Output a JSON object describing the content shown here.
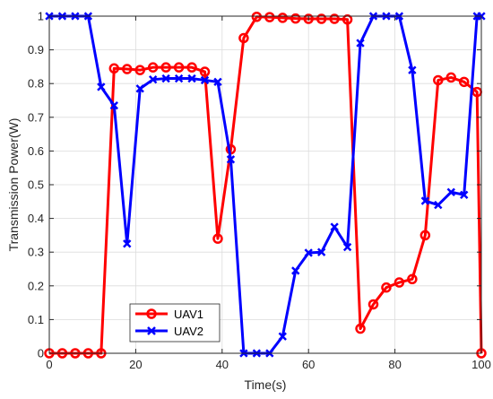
{
  "chart_data": {
    "type": "line",
    "title": "",
    "xlabel": "Time(s)",
    "ylabel": "Transmission Power(W)",
    "xlim": [
      0,
      100
    ],
    "ylim": [
      0,
      1
    ],
    "xticks": [
      0,
      20,
      40,
      60,
      80,
      100
    ],
    "yticks": [
      0,
      0.1,
      0.2,
      0.3,
      0.4,
      0.5,
      0.6,
      0.7,
      0.8,
      0.9,
      1
    ],
    "grid": true,
    "legend_position": "bottom-left",
    "series": [
      {
        "name": "UAV1",
        "color": "#ff0000",
        "marker": "circle",
        "x": [
          0,
          3,
          6,
          9,
          12,
          15,
          18,
          21,
          24,
          27,
          30,
          33,
          36,
          39,
          42,
          45,
          48,
          51,
          54,
          57,
          60,
          63,
          66,
          69,
          72,
          75,
          78,
          81,
          84,
          87,
          90,
          93,
          96,
          99,
          100
        ],
        "values": [
          0,
          0,
          0,
          0,
          0,
          0.845,
          0.843,
          0.84,
          0.848,
          0.848,
          0.848,
          0.848,
          0.835,
          0.34,
          0.605,
          0.935,
          0.998,
          0.997,
          0.995,
          0.993,
          0.992,
          0.992,
          0.992,
          0.99,
          0.073,
          0.145,
          0.195,
          0.21,
          0.22,
          0.35,
          0.81,
          0.818,
          0.805,
          0.775,
          0
        ]
      },
      {
        "name": "UAV2",
        "color": "#0000ff",
        "marker": "x",
        "x": [
          0,
          3,
          6,
          9,
          12,
          15,
          18,
          21,
          24,
          27,
          30,
          33,
          36,
          39,
          42,
          45,
          48,
          51,
          54,
          57,
          60,
          63,
          66,
          69,
          72,
          75,
          78,
          81,
          84,
          87,
          90,
          93,
          96,
          99,
          100
        ],
        "values": [
          1,
          1,
          1,
          1,
          0.79,
          0.735,
          0.325,
          0.785,
          0.812,
          0.815,
          0.815,
          0.815,
          0.81,
          0.805,
          0.575,
          0,
          0,
          0,
          0.05,
          0.245,
          0.298,
          0.3,
          0.375,
          0.315,
          0.92,
          1,
          1,
          1,
          0.84,
          0.452,
          0.44,
          0.478,
          0.47,
          1,
          1
        ]
      }
    ]
  }
}
